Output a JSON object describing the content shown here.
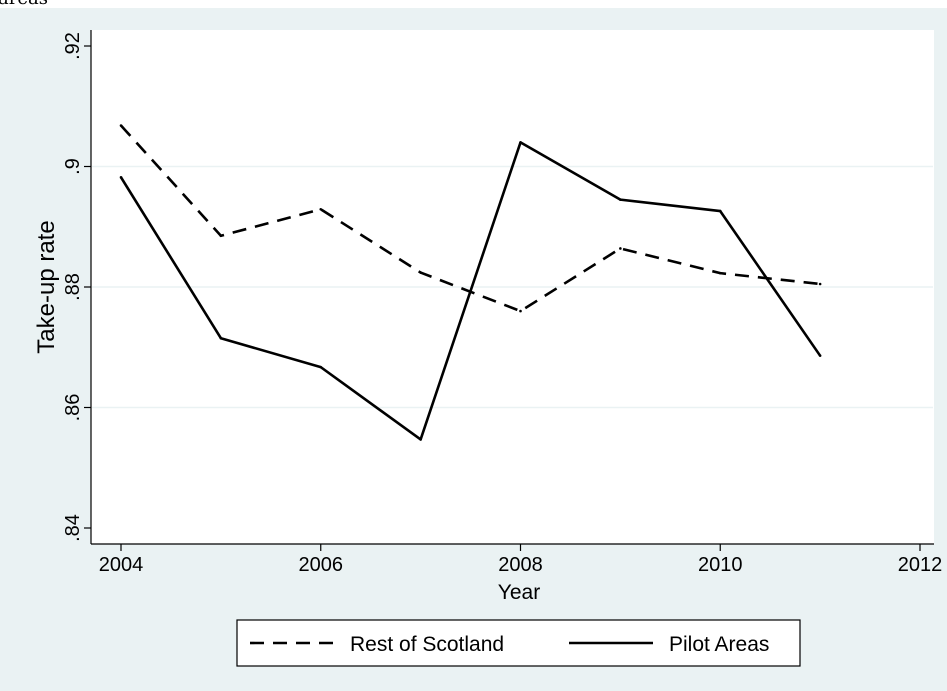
{
  "page": {
    "clipped_heading": "areas"
  },
  "colors": {
    "outer_background": "#eaf2f3",
    "plot_background": "#ffffff",
    "gridline": "#eaf2f3",
    "line": "#000000"
  },
  "chart_data": {
    "type": "line",
    "title": "",
    "xlabel": "Year",
    "ylabel": "Take-up rate",
    "xlim": [
      2004,
      2012
    ],
    "ylim": [
      0.84,
      0.92
    ],
    "x_ticks": [
      2004,
      2006,
      2008,
      2010,
      2012
    ],
    "x_tick_labels": [
      "2004",
      "2006",
      "2008",
      "2010",
      "2012"
    ],
    "y_ticks": [
      0.84,
      0.86,
      0.88,
      0.9,
      0.92
    ],
    "y_tick_labels": [
      ".84",
      ".86",
      ".88",
      ".9",
      ".92"
    ],
    "grid": true,
    "legend_position": "bottom",
    "x": [
      2004,
      2005,
      2006,
      2007,
      2008,
      2009,
      2010,
      2011
    ],
    "series": [
      {
        "name": "Rest of Scotland",
        "style": "dashed",
        "values": [
          0.9068,
          0.8885,
          0.8929,
          0.8824,
          0.876,
          0.8864,
          0.8823,
          0.8805
        ]
      },
      {
        "name": "Pilot Areas",
        "style": "solid",
        "values": [
          0.8982,
          0.8715,
          0.8667,
          0.8547,
          0.904,
          0.8945,
          0.8926,
          0.8686
        ]
      }
    ]
  }
}
